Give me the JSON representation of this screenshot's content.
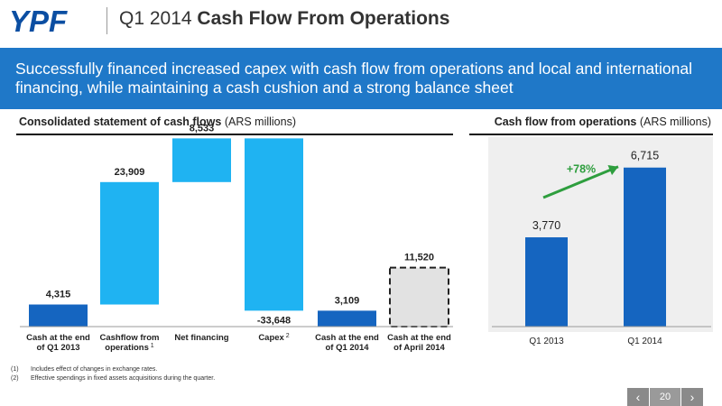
{
  "header": {
    "logo_text": "YPF",
    "title_prefix": "Q1 2014 ",
    "title_bold": "Cash Flow From Operations"
  },
  "banner": {
    "text": "Successfully financed increased capex with cash flow from operations and local and international financing, while maintaining a cash cushion and a strong balance sheet"
  },
  "left_section": {
    "title_bold": "Consolidated statement of cash flows",
    "title_rest": " (ARS millions)"
  },
  "right_section": {
    "title_bold": "Cash flow from operations",
    "title_rest": " (ARS millions)"
  },
  "colors": {
    "dark_blue": "#1565c0",
    "light_blue": "#1fb3f2",
    "projected_fill": "#e2e2e2",
    "growth_green": "#2e9e3e",
    "banner_blue": "#1f78c8"
  },
  "chart_data": [
    {
      "type": "bar",
      "subtype": "waterfall",
      "steps": [
        {
          "label": [
            "Cash at the end",
            "of Q1 2013"
          ],
          "sup": "",
          "value": 4315,
          "value_label": "4,315",
          "kind": "total"
        },
        {
          "label": [
            "Cashflow from",
            "operations"
          ],
          "sup": "1",
          "value": 23909,
          "value_label": "23,909",
          "kind": "delta"
        },
        {
          "label": [
            "Net financing"
          ],
          "sup": "",
          "value": 8533,
          "value_label": "8,533",
          "kind": "delta"
        },
        {
          "label": [
            "Capex"
          ],
          "sup": "2",
          "value": -33648,
          "value_label": "-33,648",
          "kind": "delta"
        },
        {
          "label": [
            "Cash at the end",
            "of Q1 2014"
          ],
          "sup": "",
          "value": 3109,
          "value_label": "3,109",
          "kind": "total"
        },
        {
          "label": [
            "Cash at the end",
            "of April 2014"
          ],
          "sup": "",
          "value": 11520,
          "value_label": "11,520",
          "kind": "projected"
        }
      ],
      "ylim": [
        0,
        37000
      ],
      "grid": false
    },
    {
      "type": "bar",
      "categories": [
        "Q1 2013",
        "Q1 2014"
      ],
      "values": [
        3770,
        6715
      ],
      "value_labels": [
        "3,770",
        "6,715"
      ],
      "annotation": "+78%",
      "ylim": [
        0,
        8000
      ],
      "grid": false
    }
  ],
  "footnotes": [
    {
      "num": "(1)",
      "text": "Includes effect of changes in exchange rates."
    },
    {
      "num": "(2)",
      "text": "Effective spendings in fixed assets acquisitions during the quarter."
    }
  ],
  "pager": {
    "prev_icon": "chevron-left-icon",
    "next_icon": "chevron-right-icon",
    "prev_glyph": "‹",
    "next_glyph": "›",
    "page": "20"
  }
}
